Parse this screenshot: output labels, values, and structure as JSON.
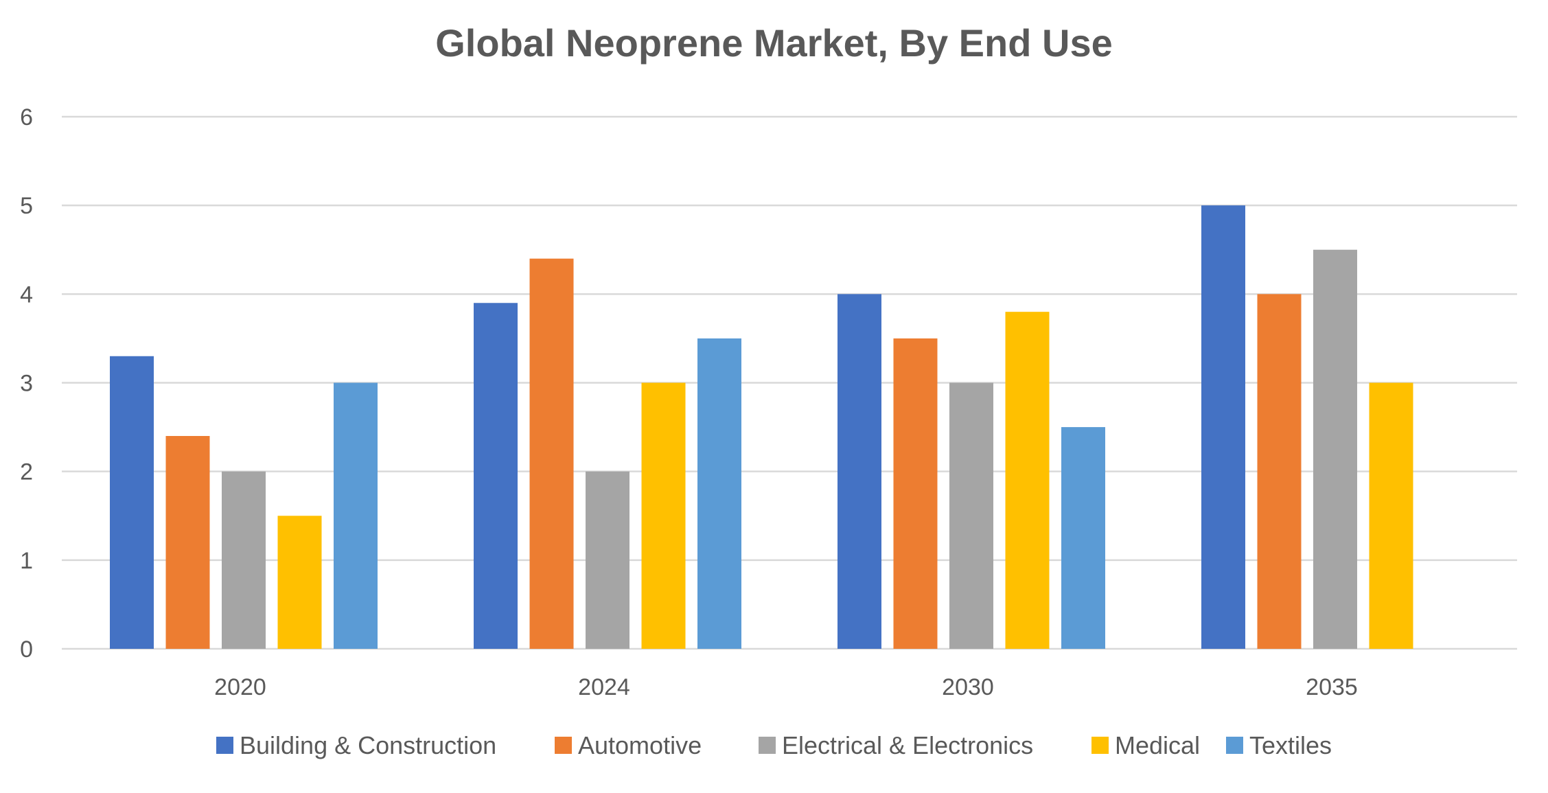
{
  "chart_data": {
    "type": "bar",
    "title": "Global Neoprene Market, By End Use",
    "xlabel": "",
    "ylabel": "",
    "categories": [
      "2020",
      "2024",
      "2030",
      "2035"
    ],
    "ylim": [
      0,
      6
    ],
    "yticks": [
      0,
      1,
      2,
      3,
      4,
      5,
      6
    ],
    "grid": true,
    "legend_position": "bottom",
    "series": [
      {
        "name": "Building & Construction",
        "color": "#4472C4",
        "values": [
          3.3,
          3.9,
          4.0,
          5.0
        ]
      },
      {
        "name": "Automotive",
        "color": "#ED7D31",
        "values": [
          2.4,
          4.4,
          3.5,
          4.0
        ]
      },
      {
        "name": "Electrical & Electronics",
        "color": "#A5A5A5",
        "values": [
          2.0,
          2.0,
          3.0,
          4.5
        ]
      },
      {
        "name": "Medical",
        "color": "#FFC000",
        "values": [
          1.5,
          3.0,
          3.8,
          3.0
        ]
      },
      {
        "name": "Textiles",
        "color": "#5B9BD5",
        "values": [
          3.0,
          3.5,
          2.5,
          null
        ]
      }
    ]
  }
}
